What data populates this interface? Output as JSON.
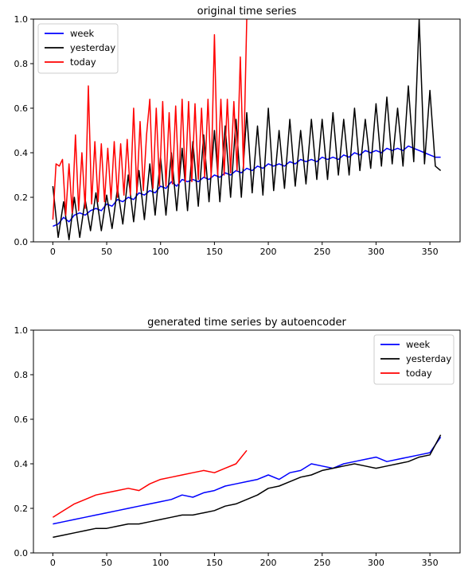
{
  "chart_data": [
    {
      "type": "line",
      "title": "original time series",
      "xlabel": "",
      "ylabel": "",
      "xlim": [
        -18,
        378
      ],
      "ylim": [
        0,
        1.0
      ],
      "xticks": [
        0,
        50,
        100,
        150,
        200,
        250,
        300,
        350
      ],
      "yticks": [
        0.0,
        0.2,
        0.4,
        0.6,
        0.8,
        1.0
      ],
      "legend_position": "top-left",
      "grid": false,
      "series": [
        {
          "name": "week",
          "color": "#0000ff",
          "x": [
            0,
            5,
            10,
            15,
            20,
            25,
            30,
            35,
            40,
            45,
            50,
            55,
            60,
            65,
            70,
            75,
            80,
            85,
            90,
            95,
            100,
            105,
            110,
            115,
            120,
            125,
            130,
            135,
            140,
            145,
            150,
            155,
            160,
            165,
            170,
            175,
            180,
            185,
            190,
            195,
            200,
            205,
            210,
            215,
            220,
            225,
            230,
            235,
            240,
            245,
            250,
            255,
            260,
            265,
            270,
            275,
            280,
            285,
            290,
            295,
            300,
            305,
            310,
            315,
            320,
            325,
            330,
            335,
            340,
            345,
            350,
            355,
            360
          ],
          "y": [
            0.07,
            0.08,
            0.11,
            0.09,
            0.12,
            0.13,
            0.12,
            0.14,
            0.15,
            0.14,
            0.17,
            0.16,
            0.19,
            0.18,
            0.2,
            0.19,
            0.22,
            0.21,
            0.23,
            0.22,
            0.25,
            0.24,
            0.27,
            0.25,
            0.28,
            0.27,
            0.28,
            0.27,
            0.29,
            0.28,
            0.3,
            0.29,
            0.31,
            0.3,
            0.32,
            0.31,
            0.33,
            0.32,
            0.34,
            0.33,
            0.35,
            0.34,
            0.35,
            0.34,
            0.36,
            0.35,
            0.37,
            0.36,
            0.37,
            0.36,
            0.38,
            0.37,
            0.38,
            0.37,
            0.39,
            0.38,
            0.4,
            0.39,
            0.41,
            0.4,
            0.41,
            0.4,
            0.42,
            0.41,
            0.42,
            0.41,
            0.43,
            0.42,
            0.41,
            0.4,
            0.39,
            0.38,
            0.38
          ]
        },
        {
          "name": "yesterday",
          "color": "#000000",
          "x": [
            0,
            5,
            10,
            15,
            20,
            25,
            30,
            35,
            40,
            45,
            50,
            55,
            60,
            65,
            70,
            75,
            80,
            85,
            90,
            95,
            100,
            105,
            110,
            115,
            120,
            125,
            130,
            135,
            140,
            145,
            150,
            155,
            160,
            165,
            170,
            175,
            180,
            185,
            190,
            195,
            200,
            205,
            210,
            215,
            220,
            225,
            230,
            235,
            240,
            245,
            250,
            255,
            260,
            265,
            270,
            275,
            280,
            285,
            290,
            295,
            300,
            305,
            310,
            315,
            320,
            325,
            330,
            335,
            340,
            345,
            350,
            355,
            360
          ],
          "y": [
            0.25,
            0.02,
            0.18,
            0.01,
            0.2,
            0.02,
            0.19,
            0.05,
            0.22,
            0.05,
            0.21,
            0.06,
            0.24,
            0.08,
            0.3,
            0.09,
            0.32,
            0.1,
            0.35,
            0.12,
            0.38,
            0.12,
            0.4,
            0.14,
            0.42,
            0.14,
            0.45,
            0.16,
            0.48,
            0.18,
            0.5,
            0.18,
            0.52,
            0.2,
            0.55,
            0.2,
            0.58,
            0.22,
            0.52,
            0.21,
            0.6,
            0.23,
            0.5,
            0.24,
            0.55,
            0.25,
            0.5,
            0.26,
            0.55,
            0.28,
            0.55,
            0.28,
            0.58,
            0.3,
            0.55,
            0.3,
            0.6,
            0.32,
            0.55,
            0.33,
            0.62,
            0.34,
            0.65,
            0.35,
            0.6,
            0.34,
            0.7,
            0.36,
            1.0,
            0.35,
            0.68,
            0.34,
            0.32
          ]
        },
        {
          "name": "today",
          "color": "#ff0000",
          "x": [
            0,
            3,
            6,
            9,
            12,
            15,
            18,
            21,
            24,
            27,
            30,
            33,
            36,
            39,
            42,
            45,
            48,
            51,
            54,
            57,
            60,
            63,
            66,
            69,
            72,
            75,
            78,
            81,
            84,
            87,
            90,
            93,
            96,
            99,
            102,
            105,
            108,
            111,
            114,
            117,
            120,
            123,
            126,
            129,
            132,
            135,
            138,
            141,
            144,
            147,
            150,
            153,
            156,
            159,
            162,
            165,
            168,
            171,
            174,
            177,
            180
          ],
          "y": [
            0.1,
            0.35,
            0.34,
            0.37,
            0.12,
            0.35,
            0.13,
            0.48,
            0.14,
            0.4,
            0.15,
            0.7,
            0.17,
            0.45,
            0.18,
            0.44,
            0.18,
            0.42,
            0.19,
            0.45,
            0.2,
            0.44,
            0.21,
            0.46,
            0.21,
            0.6,
            0.22,
            0.54,
            0.23,
            0.48,
            0.64,
            0.24,
            0.6,
            0.25,
            0.63,
            0.25,
            0.58,
            0.26,
            0.61,
            0.26,
            0.64,
            0.27,
            0.63,
            0.27,
            0.62,
            0.28,
            0.6,
            0.29,
            0.64,
            0.29,
            0.93,
            0.3,
            0.64,
            0.3,
            0.64,
            0.31,
            0.63,
            0.32,
            0.83,
            0.33,
            1.0
          ]
        }
      ]
    },
    {
      "type": "line",
      "title": "generated time series by autoencoder",
      "xlabel": "",
      "ylabel": "",
      "xlim": [
        -18,
        378
      ],
      "ylim": [
        0,
        1.0
      ],
      "xticks": [
        0,
        50,
        100,
        150,
        200,
        250,
        300,
        350
      ],
      "yticks": [
        0.0,
        0.2,
        0.4,
        0.6,
        0.8,
        1.0
      ],
      "legend_position": "top-right",
      "grid": false,
      "series": [
        {
          "name": "week",
          "color": "#0000ff",
          "x": [
            0,
            10,
            20,
            30,
            40,
            50,
            60,
            70,
            80,
            90,
            100,
            110,
            120,
            130,
            140,
            150,
            160,
            170,
            180,
            190,
            200,
            210,
            220,
            230,
            240,
            250,
            260,
            270,
            280,
            290,
            300,
            310,
            320,
            330,
            340,
            350,
            360
          ],
          "y": [
            0.13,
            0.14,
            0.15,
            0.16,
            0.17,
            0.18,
            0.19,
            0.2,
            0.21,
            0.22,
            0.23,
            0.24,
            0.26,
            0.25,
            0.27,
            0.28,
            0.3,
            0.31,
            0.32,
            0.33,
            0.35,
            0.33,
            0.36,
            0.37,
            0.4,
            0.39,
            0.38,
            0.4,
            0.41,
            0.42,
            0.43,
            0.41,
            0.42,
            0.43,
            0.44,
            0.45,
            0.52
          ]
        },
        {
          "name": "yesterday",
          "color": "#000000",
          "x": [
            0,
            10,
            20,
            30,
            40,
            50,
            60,
            70,
            80,
            90,
            100,
            110,
            120,
            130,
            140,
            150,
            160,
            170,
            180,
            190,
            200,
            210,
            220,
            230,
            240,
            250,
            260,
            270,
            280,
            290,
            300,
            310,
            320,
            330,
            340,
            350,
            360
          ],
          "y": [
            0.07,
            0.08,
            0.09,
            0.1,
            0.11,
            0.11,
            0.12,
            0.13,
            0.13,
            0.14,
            0.15,
            0.16,
            0.17,
            0.17,
            0.18,
            0.19,
            0.21,
            0.22,
            0.24,
            0.26,
            0.29,
            0.3,
            0.32,
            0.34,
            0.35,
            0.37,
            0.38,
            0.39,
            0.4,
            0.39,
            0.38,
            0.39,
            0.4,
            0.41,
            0.43,
            0.44,
            0.53
          ]
        },
        {
          "name": "today",
          "color": "#ff0000",
          "x": [
            0,
            10,
            20,
            30,
            40,
            50,
            60,
            70,
            80,
            90,
            100,
            110,
            120,
            130,
            140,
            150,
            160,
            170,
            180
          ],
          "y": [
            0.16,
            0.19,
            0.22,
            0.24,
            0.26,
            0.27,
            0.28,
            0.29,
            0.28,
            0.31,
            0.33,
            0.34,
            0.35,
            0.36,
            0.37,
            0.36,
            0.38,
            0.4,
            0.46
          ]
        }
      ]
    }
  ]
}
